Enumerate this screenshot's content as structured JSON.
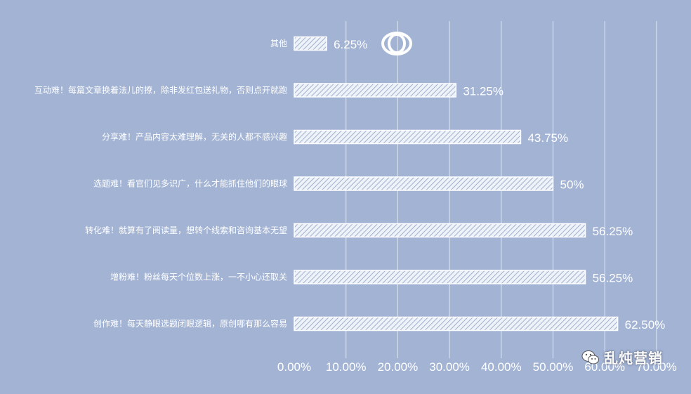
{
  "chart_data": {
    "type": "bar",
    "orientation": "horizontal",
    "categories": [
      "其他",
      "互动难！每篇文章换着法儿的撩，除非发红包送礼物，否则点开就跑",
      "分享难！产品内容太难理解，无关的人都不感兴趣",
      "选题难！看官们见多识广，什么才能抓住他们的眼球",
      "转化难！就算有了阅读量，想转个线索和咨询基本无望",
      "增粉难！粉丝每天个位数上涨，一不小心还取关",
      "创作难！每天静眼选题闭眼逻辑，原创哪有那么容易"
    ],
    "values": [
      6.25,
      31.25,
      43.75,
      50,
      56.25,
      56.25,
      62.5
    ],
    "value_labels": [
      "6.25%",
      "31.25%",
      "43.75%",
      "50%",
      "56.25%",
      "56.25%",
      "62.50%"
    ],
    "xlim": [
      0,
      70
    ],
    "x_ticks": [
      0,
      10,
      20,
      30,
      40,
      50,
      60,
      70
    ],
    "x_tick_labels": [
      "0.00%",
      "10.00%",
      "20.00%",
      "30.00%",
      "40.00%",
      "50.00%",
      "60.00%",
      "70.00%"
    ],
    "grid": "vertical",
    "bar_fill": "hatched white",
    "colors": {
      "background": "#a2b3d4",
      "bar": "#ffffff",
      "grid": "#d6deee"
    }
  },
  "watermark": {
    "text": "乱炖营销",
    "icon": "wechat-icon"
  },
  "logo": {
    "icon": "ring-logo-icon"
  }
}
